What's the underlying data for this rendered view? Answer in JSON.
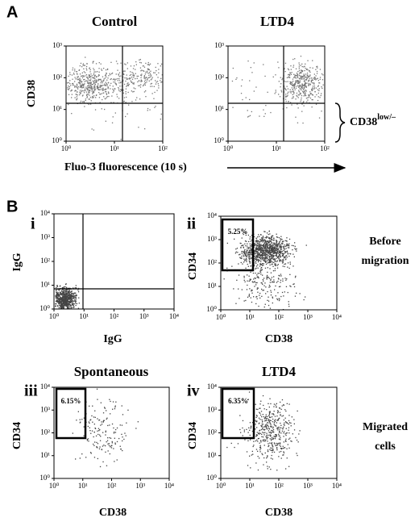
{
  "panels": [
    {
      "label": "A",
      "plots": [
        {
          "title": "Control",
          "y_label": "CD38",
          "xticks": [
            "10⁰",
            "10¹",
            "10²"
          ],
          "yticks": [
            "10⁰",
            "10¹",
            "10²",
            "10³"
          ]
        },
        {
          "title": "LTD4",
          "xticks": [
            "10⁰",
            "10¹",
            "10²"
          ],
          "yticks": [
            "10⁰",
            "10¹",
            "10²",
            "10³"
          ]
        }
      ],
      "x_label": "Fluo-3 fluorescence (10 s)",
      "bracket_label": {
        "main": "CD38",
        "sup": "low/–"
      }
    },
    {
      "label": "B",
      "plots": [
        {
          "roman": "i",
          "y_label": "IgG",
          "x_label": "IgG",
          "xticks": [
            "10⁰",
            "10¹",
            "10²",
            "10³",
            "10⁴"
          ],
          "yticks": [
            "10⁰",
            "10¹",
            "10²",
            "10³",
            "10⁴"
          ]
        },
        {
          "roman": "ii",
          "y_label": "CD34",
          "x_label": "CD38",
          "gate": "5.25%",
          "xticks": [
            "10⁰",
            "10¹",
            "10²",
            "10³",
            "10⁴"
          ],
          "yticks": [
            "10⁰",
            "10¹",
            "10²",
            "10³",
            "10⁴"
          ]
        },
        {
          "roman": "iii",
          "title": "Spontaneous",
          "y_label": "CD34",
          "x_label": "CD38",
          "gate": "6.15%",
          "xticks": [
            "10⁰",
            "10¹",
            "10²",
            "10³",
            "10⁴"
          ],
          "yticks": [
            "10⁰",
            "10¹",
            "10²",
            "10³",
            "10⁴"
          ]
        },
        {
          "roman": "iv",
          "title": "LTD4",
          "y_label": "CD34",
          "x_label": "CD38",
          "gate": "6.35%",
          "xticks": [
            "10⁰",
            "10¹",
            "10²",
            "10³",
            "10⁴"
          ],
          "yticks": [
            "10⁰",
            "10¹",
            "10²",
            "10³",
            "10⁴"
          ]
        }
      ],
      "side_labels": [
        [
          "Before",
          "migration"
        ],
        [
          "Migrated",
          "cells"
        ]
      ]
    }
  ]
}
